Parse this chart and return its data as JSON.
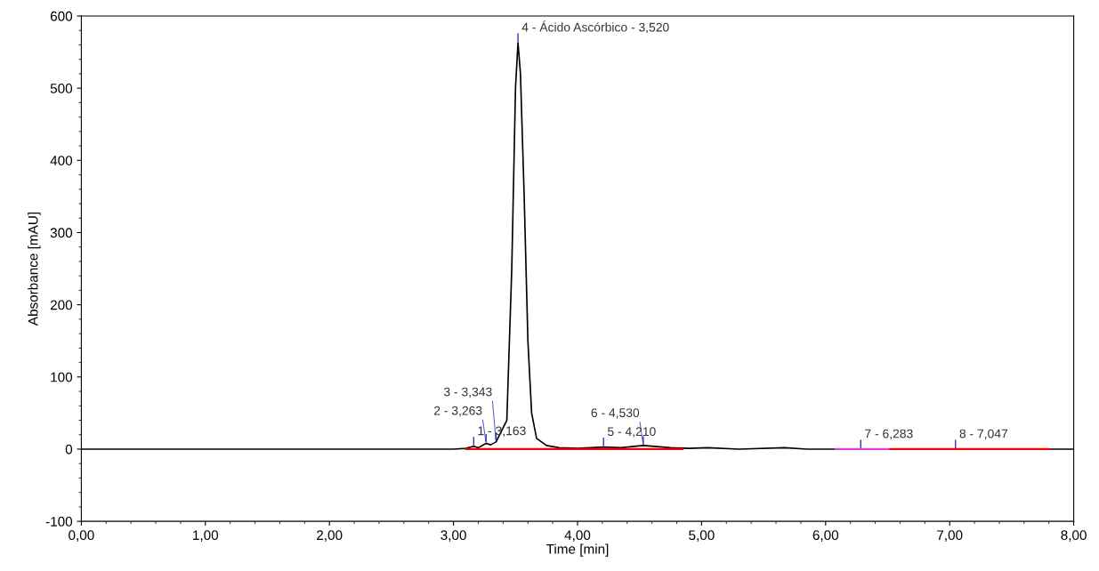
{
  "chart_data": {
    "type": "line",
    "xlabel": "Time [min]",
    "ylabel": "Absorbance [mAU]",
    "xlim": [
      0,
      8
    ],
    "ylim": [
      -100,
      600
    ],
    "xticks": [
      {
        "value": 0,
        "label": "0,00"
      },
      {
        "value": 1,
        "label": "1,00"
      },
      {
        "value": 2,
        "label": "2,00"
      },
      {
        "value": 3,
        "label": "3,00"
      },
      {
        "value": 4,
        "label": "4,00"
      },
      {
        "value": 5,
        "label": "5,00"
      },
      {
        "value": 6,
        "label": "6,00"
      },
      {
        "value": 7,
        "label": "7,00"
      },
      {
        "value": 8,
        "label": "8,00"
      }
    ],
    "yticks": [
      -100,
      0,
      100,
      200,
      300,
      400,
      500,
      600
    ],
    "grid": false,
    "legend": false,
    "marker": "none",
    "line_style": "solid",
    "series": [
      {
        "color": "#000000",
        "x": [
          0,
          1,
          2,
          3.0,
          3.1,
          3.163,
          3.2,
          3.263,
          3.3,
          3.343,
          3.43,
          3.47,
          3.5,
          3.52,
          3.54,
          3.57,
          3.6,
          3.63,
          3.67,
          3.75,
          3.85,
          4.0,
          4.21,
          4.35,
          4.53,
          4.75,
          4.9,
          5.05,
          5.3,
          5.67,
          5.85,
          6.283,
          7.047,
          8
        ],
        "values": [
          0,
          0,
          0,
          0,
          1,
          4,
          2,
          8,
          6,
          10,
          40,
          250,
          500,
          563,
          520,
          350,
          150,
          50,
          15,
          5,
          2,
          1,
          3,
          2,
          5,
          2,
          1,
          2,
          0,
          2,
          0,
          0,
          0,
          0
        ]
      },
      {
        "color": "#ff0000",
        "x": [
          3.1,
          4.85
        ],
        "values": [
          0,
          0
        ]
      },
      {
        "color": "#e040e0",
        "x": [
          6.08,
          6.52
        ],
        "values": [
          0,
          0
        ]
      },
      {
        "color": "#ff0000",
        "x": [
          6.52,
          7.8
        ],
        "values": [
          0,
          0
        ]
      }
    ],
    "annotations": [
      {
        "text": "1 - 3,163",
        "x": 3.163,
        "y": 4
      },
      {
        "text": "2 - 3,263",
        "x": 3.263,
        "y": 8
      },
      {
        "text": "3 - 3,343",
        "x": 3.343,
        "y": 10
      },
      {
        "text": "4 - Ácido Ascórbico - 3,520",
        "x": 3.52,
        "y": 563
      },
      {
        "text": "5 - 4,210",
        "x": 4.21,
        "y": 3
      },
      {
        "text": "6 - 4,530",
        "x": 4.53,
        "y": 5
      },
      {
        "text": "7 - 6,283",
        "x": 6.283,
        "y": 0
      },
      {
        "text": "8 - 7,047",
        "x": 7.047,
        "y": 0
      }
    ]
  }
}
